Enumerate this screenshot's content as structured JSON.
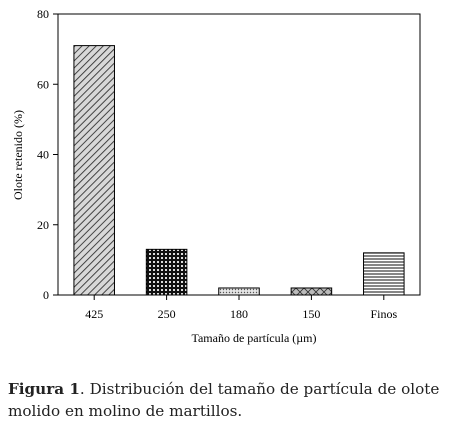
{
  "chart_data": {
    "type": "bar",
    "categories": [
      "425",
      "250",
      "180",
      "150",
      "Finos"
    ],
    "values": [
      71,
      13,
      2,
      2,
      12
    ],
    "ylabel": "Olote retenido (%)",
    "xlabel": "Tamaño de partícula (µm)",
    "ylim": [
      0,
      80
    ],
    "yticks": [
      0,
      20,
      40,
      60,
      80
    ],
    "grid": false,
    "legend": "none",
    "fills": [
      "diagonal-hatch",
      "dense-crosshatch",
      "fine-dots",
      "crosshatch",
      "horizontal-lines"
    ]
  },
  "caption": {
    "label": "Figura 1",
    "text": ". Distribución del tamaño de partícula de olote molido en molino de martillos."
  }
}
